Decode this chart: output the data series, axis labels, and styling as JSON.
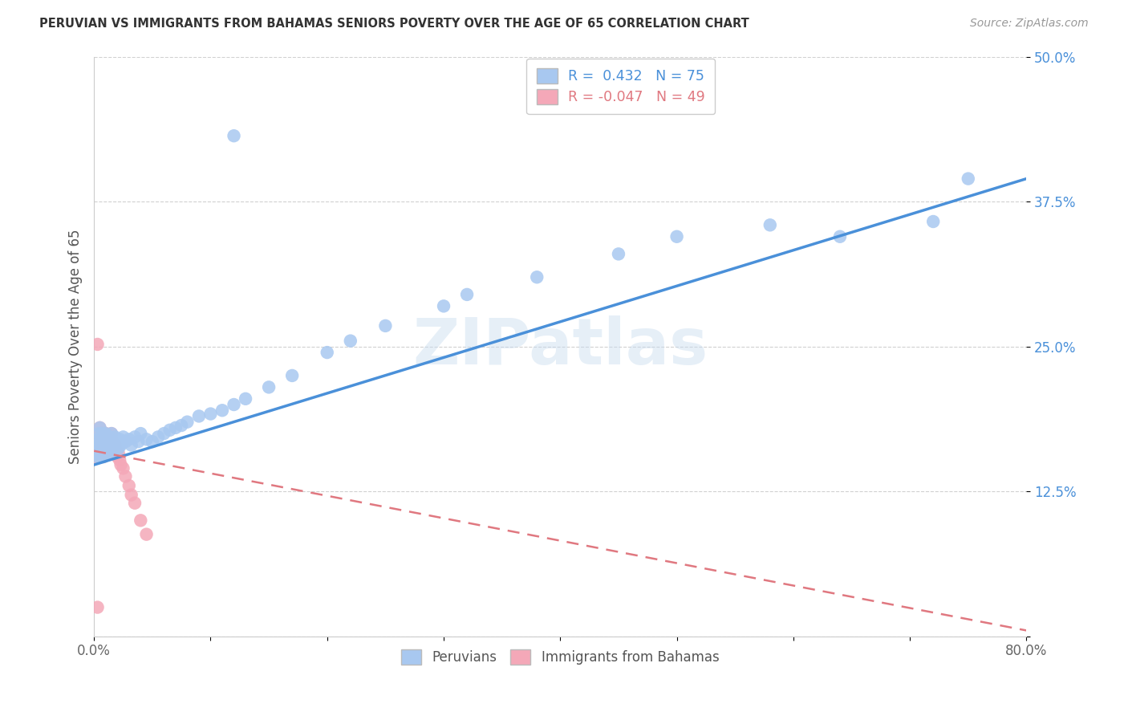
{
  "title": "PERUVIAN VS IMMIGRANTS FROM BAHAMAS SENIORS POVERTY OVER THE AGE OF 65 CORRELATION CHART",
  "source": "Source: ZipAtlas.com",
  "ylabel": "Seniors Poverty Over the Age of 65",
  "xlim": [
    0.0,
    0.8
  ],
  "ylim": [
    0.0,
    0.5
  ],
  "xticks": [
    0.0,
    0.1,
    0.2,
    0.3,
    0.4,
    0.5,
    0.6,
    0.7,
    0.8
  ],
  "xticklabels": [
    "0.0%",
    "",
    "",
    "",
    "",
    "",
    "",
    "",
    "80.0%"
  ],
  "yticks": [
    0.0,
    0.125,
    0.25,
    0.375,
    0.5
  ],
  "yticklabels": [
    "",
    "12.5%",
    "25.0%",
    "37.5%",
    "50.0%"
  ],
  "blue_dot_color": "#A8C8F0",
  "pink_dot_color": "#F4A8B8",
  "blue_line_color": "#4A90D9",
  "pink_line_color": "#E07880",
  "legend_blue_R": " 0.432",
  "legend_blue_N": "75",
  "legend_pink_R": "-0.047",
  "legend_pink_N": "49",
  "legend_label_blue": "Peruvians",
  "legend_label_pink": "Immigrants from Bahamas",
  "watermark": "ZIPatlas",
  "blue_line_x0": 0.0,
  "blue_line_y0": 0.148,
  "blue_line_x1": 0.8,
  "blue_line_y1": 0.395,
  "pink_line_x0": 0.0,
  "pink_line_y0": 0.16,
  "pink_line_x1": 0.8,
  "pink_line_y1": 0.005,
  "peruvian_x": [
    0.002,
    0.003,
    0.003,
    0.004,
    0.004,
    0.005,
    0.005,
    0.005,
    0.006,
    0.006,
    0.006,
    0.007,
    0.007,
    0.007,
    0.008,
    0.008,
    0.008,
    0.009,
    0.009,
    0.01,
    0.01,
    0.01,
    0.011,
    0.011,
    0.012,
    0.012,
    0.013,
    0.013,
    0.014,
    0.014,
    0.015,
    0.015,
    0.016,
    0.017,
    0.018,
    0.019,
    0.02,
    0.021,
    0.022,
    0.023,
    0.025,
    0.027,
    0.03,
    0.032,
    0.035,
    0.038,
    0.04,
    0.045,
    0.05,
    0.055,
    0.06,
    0.065,
    0.07,
    0.075,
    0.08,
    0.09,
    0.1,
    0.11,
    0.12,
    0.13,
    0.15,
    0.17,
    0.2,
    0.22,
    0.25,
    0.3,
    0.32,
    0.38,
    0.45,
    0.5,
    0.58,
    0.64,
    0.72,
    0.12,
    0.75
  ],
  "peruvian_y": [
    0.16,
    0.155,
    0.17,
    0.162,
    0.175,
    0.168,
    0.155,
    0.18,
    0.165,
    0.172,
    0.158,
    0.175,
    0.162,
    0.168,
    0.17,
    0.155,
    0.165,
    0.16,
    0.172,
    0.165,
    0.158,
    0.175,
    0.168,
    0.162,
    0.17,
    0.158,
    0.165,
    0.172,
    0.16,
    0.168,
    0.175,
    0.162,
    0.168,
    0.16,
    0.172,
    0.165,
    0.168,
    0.162,
    0.17,
    0.165,
    0.172,
    0.168,
    0.17,
    0.165,
    0.172,
    0.168,
    0.175,
    0.17,
    0.168,
    0.172,
    0.175,
    0.178,
    0.18,
    0.182,
    0.185,
    0.19,
    0.192,
    0.195,
    0.2,
    0.205,
    0.215,
    0.225,
    0.245,
    0.255,
    0.268,
    0.285,
    0.295,
    0.31,
    0.33,
    0.345,
    0.355,
    0.345,
    0.358,
    0.432,
    0.395
  ],
  "bahamas_x": [
    0.002,
    0.002,
    0.003,
    0.003,
    0.004,
    0.004,
    0.005,
    0.005,
    0.005,
    0.006,
    0.006,
    0.006,
    0.007,
    0.007,
    0.007,
    0.008,
    0.008,
    0.008,
    0.009,
    0.009,
    0.01,
    0.01,
    0.01,
    0.011,
    0.011,
    0.012,
    0.012,
    0.013,
    0.013,
    0.014,
    0.015,
    0.015,
    0.016,
    0.017,
    0.018,
    0.019,
    0.02,
    0.021,
    0.022,
    0.023,
    0.025,
    0.027,
    0.03,
    0.032,
    0.035,
    0.04,
    0.045,
    0.003,
    0.003
  ],
  "bahamas_y": [
    0.165,
    0.155,
    0.17,
    0.158,
    0.162,
    0.175,
    0.168,
    0.158,
    0.18,
    0.165,
    0.172,
    0.155,
    0.175,
    0.162,
    0.168,
    0.17,
    0.155,
    0.165,
    0.16,
    0.172,
    0.165,
    0.158,
    0.175,
    0.168,
    0.162,
    0.17,
    0.158,
    0.165,
    0.172,
    0.16,
    0.162,
    0.175,
    0.168,
    0.162,
    0.165,
    0.16,
    0.155,
    0.158,
    0.152,
    0.148,
    0.145,
    0.138,
    0.13,
    0.122,
    0.115,
    0.1,
    0.088,
    0.252,
    0.025
  ]
}
